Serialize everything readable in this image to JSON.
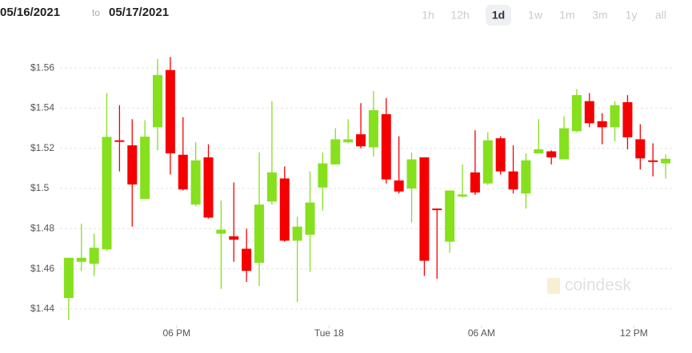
{
  "header": {
    "from": "05/16/2021",
    "between": "to",
    "to": "05/17/2021",
    "ranges": [
      "1h",
      "12h",
      "1d",
      "1w",
      "1m",
      "3m",
      "1y",
      "all"
    ],
    "active_range": 2
  },
  "watermark": "coindesk",
  "chart_data": {
    "type": "candlestick",
    "up_color": "#86e01e",
    "down_color": "#f50000",
    "grid": true,
    "xlim": [
      13.25,
      37.5
    ],
    "xticks": [
      {
        "value": 18,
        "label": "06 PM"
      },
      {
        "value": 24,
        "label": "Tue 18"
      },
      {
        "value": 30,
        "label": "06 AM"
      },
      {
        "value": 36,
        "label": "12 PM"
      }
    ],
    "ylim": [
      1.432,
      1.57
    ],
    "yticks": [
      {
        "value": 1.44,
        "label": "$1.44"
      },
      {
        "value": 1.46,
        "label": "$1.46"
      },
      {
        "value": 1.48,
        "label": "$1.48"
      },
      {
        "value": 1.5,
        "label": "$1.5"
      },
      {
        "value": 1.52,
        "label": "$1.52"
      },
      {
        "value": 1.54,
        "label": "$1.54"
      },
      {
        "value": 1.56,
        "label": "$1.56"
      }
    ],
    "x": [
      13.75,
      14.25,
      14.75,
      15.25,
      15.75,
      16.25,
      16.75,
      17.25,
      17.75,
      18.25,
      18.75,
      19.25,
      19.75,
      20.25,
      20.75,
      21.25,
      21.75,
      22.25,
      22.75,
      23.25,
      23.75,
      24.25,
      24.75,
      25.25,
      25.75,
      26.25,
      26.75,
      27.25,
      27.75,
      28.25,
      28.75,
      29.25,
      29.75,
      30.25,
      30.75,
      31.25,
      31.75,
      32.25,
      32.75,
      33.25,
      33.75,
      34.25,
      34.75,
      35.25,
      35.75,
      36.25,
      36.75,
      37.25
    ],
    "open": [
      1.4455,
      1.4635,
      1.4625,
      1.4697,
      1.524,
      1.5215,
      1.4948,
      1.5305,
      1.559,
      1.5168,
      1.492,
      1.5155,
      1.4775,
      1.4762,
      1.47,
      1.463,
      1.4935,
      1.505,
      1.474,
      1.477,
      1.5005,
      1.512,
      1.523,
      1.527,
      1.5205,
      1.537,
      1.504,
      1.5,
      1.5155,
      1.49,
      1.4735,
      1.496,
      1.508,
      1.5025,
      1.525,
      1.5085,
      1.4975,
      1.5175,
      1.5185,
      1.5145,
      1.5285,
      1.5435,
      1.5335,
      1.5305,
      1.543,
      1.5245,
      1.514,
      1.5125
    ],
    "high": [
      1.4655,
      1.4825,
      1.4775,
      1.5475,
      1.5415,
      1.5345,
      1.534,
      1.5645,
      1.5655,
      1.5355,
      1.523,
      1.522,
      1.494,
      1.503,
      1.48,
      1.518,
      1.5435,
      1.511,
      1.486,
      1.5085,
      1.518,
      1.53,
      1.5345,
      1.5425,
      1.5485,
      1.545,
      1.526,
      1.518,
      1.5155,
      1.49,
      1.499,
      1.512,
      1.529,
      1.528,
      1.526,
      1.5215,
      1.5175,
      1.5345,
      1.519,
      1.536,
      1.5495,
      1.5475,
      1.5375,
      1.5435,
      1.5465,
      1.532,
      1.5225,
      1.517
    ],
    "low": [
      1.4345,
      1.459,
      1.4565,
      1.469,
      1.5085,
      1.481,
      1.4948,
      1.519,
      1.507,
      1.499,
      1.4912,
      1.485,
      1.45,
      1.4635,
      1.4535,
      1.4515,
      1.492,
      1.4735,
      1.4435,
      1.4585,
      1.489,
      1.512,
      1.5225,
      1.52,
      1.516,
      1.5025,
      1.4975,
      1.483,
      1.4565,
      1.455,
      1.468,
      1.4955,
      1.4968,
      1.5017,
      1.507,
      1.4975,
      1.49,
      1.5175,
      1.512,
      1.5145,
      1.528,
      1.5305,
      1.522,
      1.5235,
      1.5195,
      1.5095,
      1.506,
      1.505
    ],
    "close": [
      1.4655,
      1.4655,
      1.4705,
      1.5257,
      1.5235,
      1.502,
      1.5258,
      1.5565,
      1.5175,
      1.4995,
      1.514,
      1.4855,
      1.4795,
      1.4745,
      1.459,
      1.492,
      1.508,
      1.474,
      1.481,
      1.493,
      1.5125,
      1.5245,
      1.5245,
      1.521,
      1.539,
      1.5045,
      1.4985,
      1.5145,
      1.464,
      1.4895,
      1.499,
      1.497,
      1.498,
      1.524,
      1.5085,
      1.4995,
      1.514,
      1.5195,
      1.5155,
      1.53,
      1.5465,
      1.5325,
      1.5305,
      1.5415,
      1.5255,
      1.515,
      1.5135,
      1.5148
    ]
  }
}
